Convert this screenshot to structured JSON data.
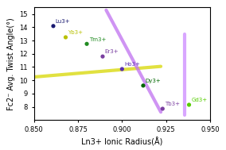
{
  "chart_data": {
    "type": "scatter",
    "xlabel": "Ln3+ Ionic Radius(Å)",
    "ylabel": "Fc2⁻ Avg. Twist Angle(°)",
    "series": [
      {
        "type": "line",
        "color": "#d8d800",
        "x": [
          0.85,
          0.922
        ],
        "values": [
          10.25,
          11.05
        ]
      },
      {
        "type": "line",
        "color": "#c070f0",
        "x": [
          0.891,
          0.922
        ],
        "values": [
          15.3,
          7.6
        ]
      },
      {
        "type": "line",
        "color": "#cc88ff",
        "x": [
          0.9355,
          0.9355
        ],
        "values": [
          7.35,
          13.5
        ]
      },
      {
        "type": "scatter",
        "x": [
          0.861,
          0.868,
          0.88,
          0.889,
          0.9,
          0.912,
          0.923,
          0.938
        ],
        "values": [
          14.1,
          13.25,
          12.75,
          11.8,
          10.85,
          9.6,
          7.85,
          8.15
        ],
        "colors": [
          "#191970",
          "#b8c000",
          "#228B22",
          "#7a3fa0",
          "#5a30b0",
          "#006600",
          "#7a3fa0",
          "#55cc00"
        ],
        "labels": [
          "Lu3+",
          "Yb3+",
          "Tm3+",
          "Er3+",
          "Ho3+",
          "Dy3+",
          "Tb3+",
          "Gd3+"
        ]
      }
    ],
    "xlim": [
      0.85,
      0.95
    ],
    "ylim": [
      7.0,
      15.5
    ],
    "xticks": [
      {
        "value": 0.85,
        "label": "0.850"
      },
      0.875,
      {
        "value": 0.9,
        "label": "0.900"
      },
      0.925,
      {
        "value": 0.95,
        "label": "0.950"
      }
    ],
    "yticks": [
      8,
      9,
      10,
      11,
      12,
      13,
      14,
      15
    ],
    "grid": false
  }
}
